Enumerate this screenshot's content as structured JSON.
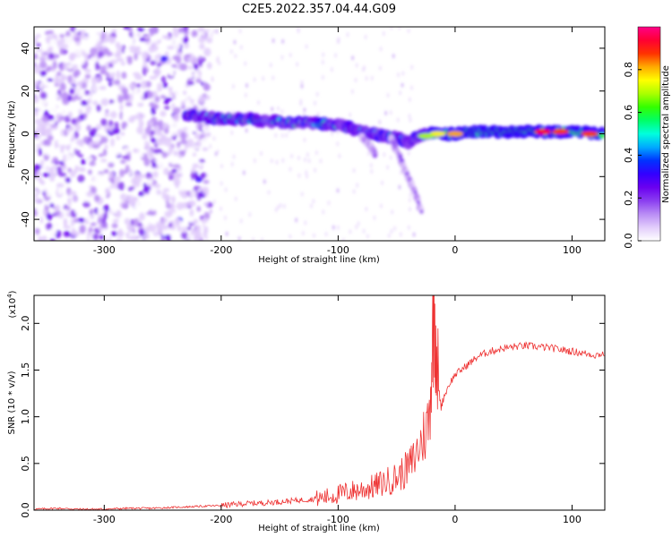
{
  "title": "C2E5.2022.357.04.44.G09",
  "chart_data": [
    {
      "type": "heatmap",
      "xlabel": "Height of straight line (km)",
      "ylabel": "Frequency (Hz)",
      "xlim": [
        -360,
        128
      ],
      "ylim": [
        -50,
        50
      ],
      "xticks": [
        -300,
        -200,
        -100,
        0,
        100
      ],
      "yticks": [
        -40,
        -20,
        0,
        20,
        40
      ],
      "colorbar": {
        "label": "Normalized spectral amplitude",
        "range": [
          0,
          1
        ],
        "ticks": [
          "0.0",
          "0.2",
          "0.4",
          "0.6",
          "0.8"
        ],
        "colors": [
          "#ffffff",
          "#e2cdfb",
          "#b98cf5",
          "#8a3df0",
          "#6a00f0",
          "#3300ff",
          "#0033ff",
          "#00aaff",
          "#00ffdd",
          "#00ff66",
          "#33ff00",
          "#aaff00",
          "#ffff00",
          "#ffaa00",
          "#ff3300",
          "#ff0033",
          "#ff0088"
        ]
      },
      "series": [
        {
          "values": [
            {
              "x": -230,
              "y": 9
            },
            {
              "x": -215,
              "y": 8
            },
            {
              "x": -200,
              "y": 7
            },
            {
              "x": -180,
              "y": 7
            },
            {
              "x": -160,
              "y": 6
            },
            {
              "x": -140,
              "y": 5
            },
            {
              "x": -120,
              "y": 5
            },
            {
              "x": -100,
              "y": 4
            },
            {
              "x": -90,
              "y": 3
            },
            {
              "x": -80,
              "y": 1
            },
            {
              "x": -70,
              "y": 0
            },
            {
              "x": -60,
              "y": -1
            },
            {
              "x": -50,
              "y": -2
            },
            {
              "x": -40,
              "y": -4
            },
            {
              "x": -30,
              "y": -1
            },
            {
              "x": -20,
              "y": 0
            },
            {
              "x": 0,
              "y": 0
            },
            {
              "x": 20,
              "y": 1
            },
            {
              "x": 40,
              "y": 1
            },
            {
              "x": 60,
              "y": 1
            },
            {
              "x": 80,
              "y": 1
            },
            {
              "x": 100,
              "y": 1
            },
            {
              "x": 128,
              "y": 0
            }
          ]
        },
        {
          "values": [
            {
              "x": -55,
              "y": -2
            },
            {
              "x": -48,
              "y": -10
            },
            {
              "x": -42,
              "y": -18
            },
            {
              "x": -36,
              "y": -25
            },
            {
              "x": -28,
              "y": -38
            }
          ]
        },
        {
          "values": [
            {
              "x": -80,
              "y": -2
            },
            {
              "x": -72,
              "y": -6
            },
            {
              "x": -68,
              "y": -10
            }
          ]
        },
        {
          "values": [
            {
              "x": -230,
              "y": 40
            },
            {
              "x": -245,
              "y": 45
            },
            {
              "x": -250,
              "y": 38
            },
            {
              "x": -275,
              "y": 22
            },
            {
              "x": -300,
              "y": 30
            },
            {
              "x": -320,
              "y": -10
            },
            {
              "x": -340,
              "y": 10
            },
            {
              "x": -290,
              "y": -30
            },
            {
              "x": -260,
              "y": -20
            },
            {
              "x": -310,
              "y": 5
            },
            {
              "x": -350,
              "y": -40
            },
            {
              "x": -240,
              "y": -45
            }
          ]
        }
      ]
    },
    {
      "type": "line",
      "xlabel": "Height of straight line (km)",
      "ylabel": "SNR (10 * v/v)",
      "yscale_label": "(x10",
      "yscale_exponent": "4",
      "yscale_close": ")",
      "xlim": [
        -360,
        128
      ],
      "ylim": [
        0,
        2.3
      ],
      "xticks": [
        -300,
        -200,
        -100,
        0,
        100
      ],
      "yticks": [
        "0.0",
        "0.5",
        "1.0",
        "1.5",
        "2.0"
      ],
      "color": "#ee3333",
      "series": [
        {
          "x": [
            -360,
            -340,
            -320,
            -300,
            -280,
            -260,
            -240,
            -220,
            -200,
            -180,
            -160,
            -140,
            -120,
            -110,
            -100,
            -90,
            -80,
            -70,
            -60,
            -50,
            -45,
            -40,
            -35,
            -30,
            -25,
            -22,
            -20,
            -18,
            -16,
            -14,
            -12,
            -10,
            -5,
            0,
            10,
            20,
            30,
            40,
            50,
            60,
            70,
            80,
            90,
            100,
            110,
            120,
            128
          ],
          "y": [
            0.01,
            0.02,
            0.01,
            0.01,
            0.02,
            0.02,
            0.03,
            0.04,
            0.05,
            0.07,
            0.08,
            0.1,
            0.12,
            0.14,
            0.17,
            0.2,
            0.22,
            0.25,
            0.3,
            0.35,
            0.4,
            0.45,
            0.55,
            0.7,
            0.85,
            1.0,
            1.6,
            2.25,
            1.8,
            1.3,
            1.1,
            1.2,
            1.35,
            1.45,
            1.55,
            1.65,
            1.7,
            1.73,
            1.75,
            1.76,
            1.75,
            1.74,
            1.72,
            1.7,
            1.68,
            1.66,
            1.68
          ]
        }
      ]
    }
  ]
}
